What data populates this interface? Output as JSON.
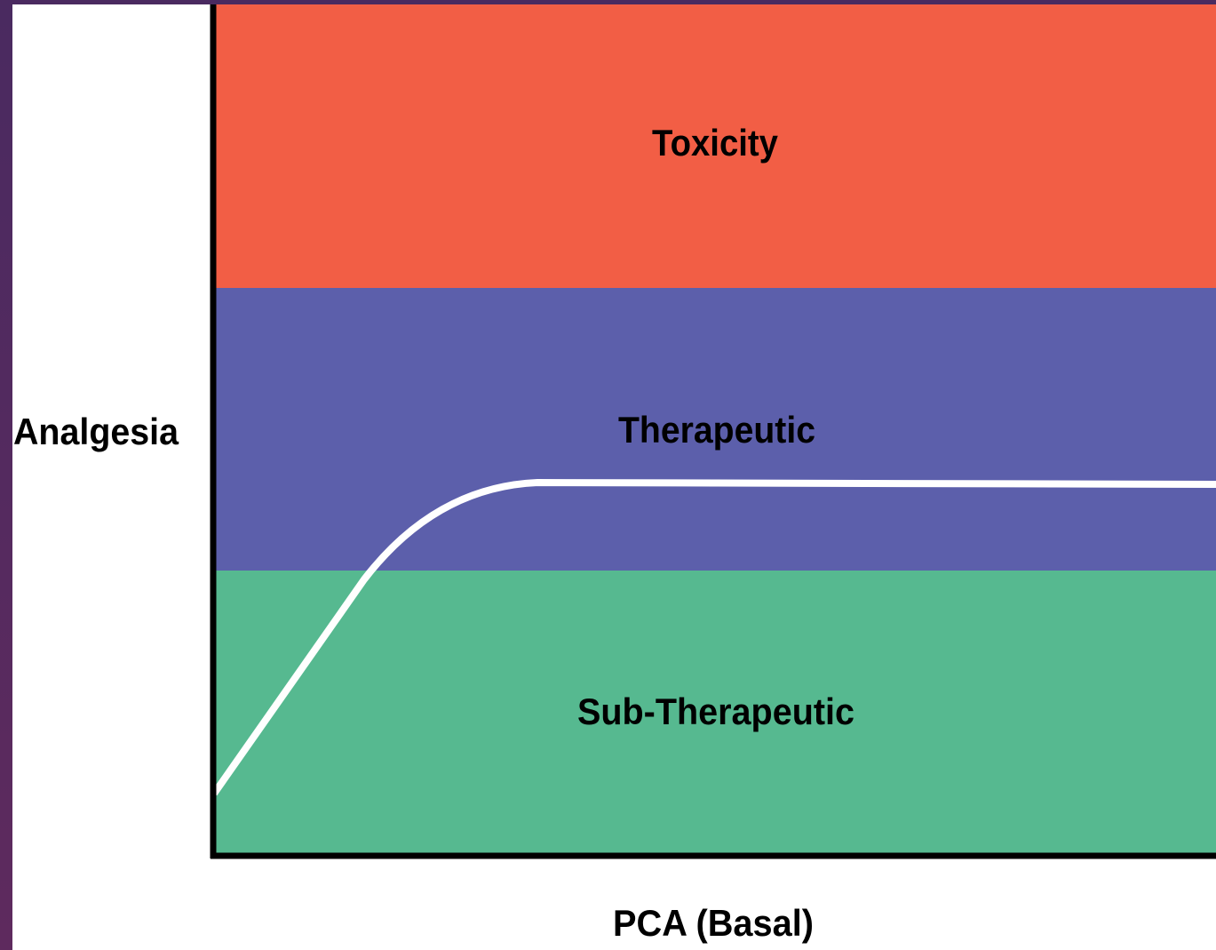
{
  "y_axis_label": "Analgesia",
  "x_axis_label": "PCA (Basal)",
  "zones": [
    {
      "label": "Toxicity"
    },
    {
      "label": "Therapeutic"
    },
    {
      "label": "Sub-Therapeutic"
    }
  ]
}
